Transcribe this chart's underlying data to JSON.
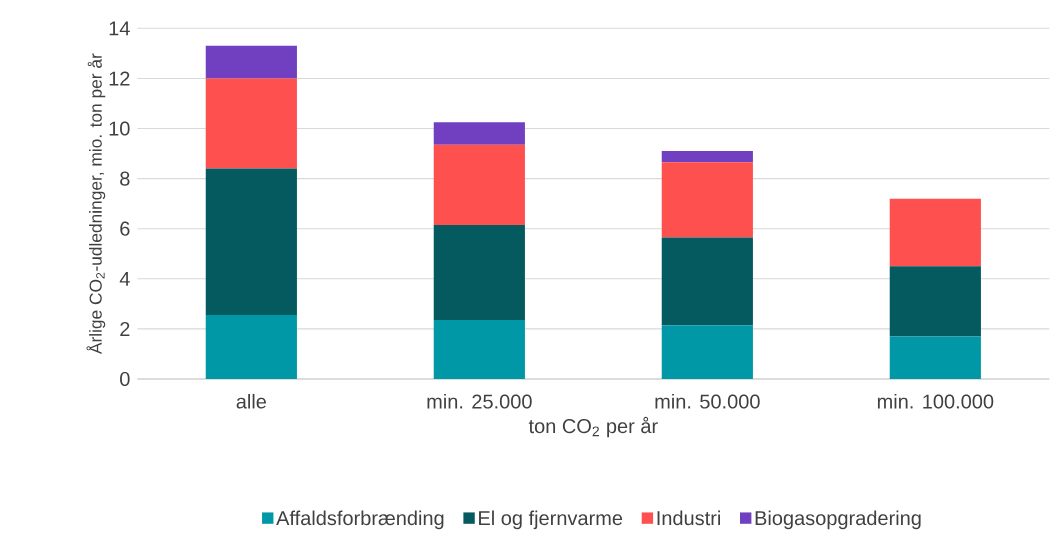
{
  "chart_data": {
    "type": "bar",
    "stacked": true,
    "xlabel": "ton CO$_{2}$ per år",
    "ylabel": "Årlige CO$_{2}$-udledninger, mio. ton per år",
    "categories": [
      "alle",
      "min. 25.000",
      "min. 50.000",
      "min. 100.000"
    ],
    "series": [
      {
        "name": "Affaldsforbrænding",
        "color": "#0097a7",
        "values": [
          2.55,
          2.35,
          2.15,
          1.7
        ]
      },
      {
        "name": "El og fjernvarme",
        "color": "#055a60",
        "values": [
          5.85,
          3.8,
          3.5,
          2.8
        ]
      },
      {
        "name": "Industri",
        "color": "#ff5050",
        "values": [
          3.6,
          3.2,
          3.0,
          2.7
        ]
      },
      {
        "name": "Biogasopgradering",
        "color": "#7040c0",
        "values": [
          1.3,
          0.9,
          0.45,
          0
        ]
      }
    ],
    "ylim": [
      0,
      14
    ],
    "yticks": [
      0,
      2,
      4,
      6,
      8,
      10,
      12,
      14
    ],
    "grid": "y",
    "legend": "bottom"
  }
}
